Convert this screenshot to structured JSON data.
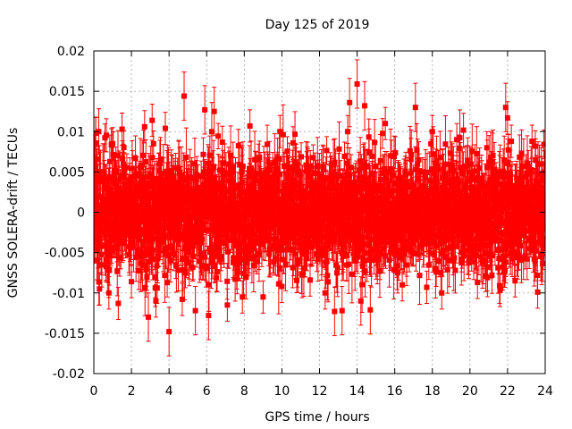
{
  "chart_data": {
    "type": "scatter",
    "title": "Day 125 of 2019",
    "xlabel": "GPS time / hours",
    "ylabel": "GNSS SOLERA-drift / TECUs",
    "xlim": [
      0,
      24
    ],
    "ylim": [
      -0.02,
      0.02
    ],
    "xticks": [
      0,
      2,
      4,
      6,
      8,
      10,
      12,
      14,
      16,
      18,
      20,
      22,
      24
    ],
    "yticks": [
      -0.02,
      -0.015,
      -0.01,
      -0.005,
      0,
      0.005,
      0.01,
      0.015,
      0.02
    ],
    "xtick_labels": [
      "0",
      "2",
      "4",
      "6",
      "8",
      "10",
      "12",
      "14",
      "16",
      "18",
      "20",
      "22",
      "24"
    ],
    "ytick_labels": [
      "-0.02",
      "-0.015",
      "-0.01",
      "-0.005",
      "0",
      "0.005",
      "0.01",
      "0.015",
      "0.02"
    ],
    "grid": true,
    "series": [
      {
        "name": "SOLERA drift",
        "color": "#ff0000",
        "marker": "square",
        "error_bars": true,
        "description": "Dense scatter of drift values with error bars across the full day, mostly within about ±0.008 TECU, with outliers reaching about ±0.015 TECU.",
        "points": [
          [
            0.1,
            0.0098,
            0.002
          ],
          [
            0.3,
            -0.0095,
            0.002
          ],
          [
            0.8,
            -0.01,
            0.002
          ],
          [
            1.0,
            0.0085,
            0.002
          ],
          [
            1.3,
            -0.0113,
            0.002
          ],
          [
            1.5,
            0.0103,
            0.002
          ],
          [
            2.0,
            -0.0086,
            0.002
          ],
          [
            2.7,
            0.0106,
            0.002
          ],
          [
            2.9,
            -0.013,
            0.003
          ],
          [
            3.1,
            0.0114,
            0.002
          ],
          [
            3.3,
            -0.011,
            0.002
          ],
          [
            3.8,
            0.0104,
            0.002
          ],
          [
            4.0,
            -0.0148,
            0.003
          ],
          [
            4.7,
            -0.0108,
            0.002
          ],
          [
            4.8,
            0.0144,
            0.003
          ],
          [
            5.4,
            -0.0122,
            0.003
          ],
          [
            5.9,
            0.0127,
            0.003
          ],
          [
            6.1,
            -0.0128,
            0.003
          ],
          [
            6.4,
            0.0125,
            0.003
          ],
          [
            7.1,
            -0.0115,
            0.002
          ],
          [
            7.9,
            -0.0105,
            0.002
          ],
          [
            8.3,
            0.0107,
            0.002
          ],
          [
            9.0,
            -0.0105,
            0.002
          ],
          [
            9.9,
            0.01,
            0.002
          ],
          [
            10.0,
            -0.0092,
            0.002
          ],
          [
            10.6,
            0.0086,
            0.002
          ],
          [
            11.5,
            -0.0084,
            0.002
          ],
          [
            12.3,
            -0.01,
            0.002
          ],
          [
            12.8,
            -0.0123,
            0.003
          ],
          [
            13.2,
            -0.0122,
            0.003
          ],
          [
            13.5,
            0.01,
            0.002
          ],
          [
            13.6,
            0.0136,
            0.003
          ],
          [
            14.0,
            0.0159,
            0.003
          ],
          [
            14.2,
            -0.011,
            0.003
          ],
          [
            14.4,
            0.0132,
            0.003
          ],
          [
            14.7,
            -0.0121,
            0.003
          ],
          [
            15.5,
            0.011,
            0.002
          ],
          [
            16.4,
            -0.009,
            0.002
          ],
          [
            17.1,
            0.013,
            0.003
          ],
          [
            17.7,
            -0.0093,
            0.002
          ],
          [
            18.0,
            0.01,
            0.002
          ],
          [
            18.5,
            -0.01,
            0.002
          ],
          [
            19.3,
            0.009,
            0.002
          ],
          [
            20.4,
            -0.0087,
            0.002
          ],
          [
            20.9,
            0.008,
            0.002
          ],
          [
            21.6,
            -0.0097,
            0.002
          ],
          [
            21.9,
            0.013,
            0.003
          ],
          [
            22.0,
            0.0117,
            0.002
          ],
          [
            22.2,
            0.0088,
            0.002
          ],
          [
            22.4,
            -0.0085,
            0.002
          ],
          [
            23.3,
            0.0088,
            0.002
          ],
          [
            23.6,
            -0.0099,
            0.002
          ],
          [
            23.8,
            0.006,
            0.002
          ]
        ]
      }
    ]
  }
}
